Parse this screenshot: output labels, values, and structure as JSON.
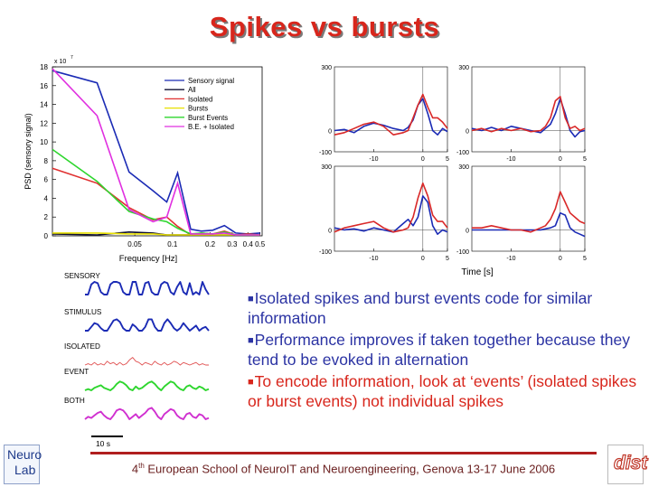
{
  "slide": {
    "title": "Spikes vs bursts",
    "footer_prefix": "4",
    "footer_sup": "th",
    "footer_text": " European School of NeuroIT and Neuroengineering, Genova 13-17 June 2006",
    "logo_left_line1": "Neuro",
    "logo_left_line2": "Lab",
    "logo_right": "dist"
  },
  "bullets": [
    {
      "text": "Isolated spikes and burst events code for similar information",
      "color": "#2b33a3"
    },
    {
      "text": "Performance improves if taken together because they tend to be evoked in alternation",
      "color": "#2b33a3"
    },
    {
      "text": "To encode information, look at ‘events’ (isolated spikes or burst events) not individual spikes",
      "color": "#d8261c"
    }
  ],
  "traces": {
    "labels": [
      "SENSORY",
      "STIMULUS",
      "ISOLATED",
      "EVENT",
      "BOTH"
    ],
    "scale_label": "10 s",
    "colors": [
      "#1b2bb5",
      "#1b2bb5",
      "#e05050",
      "#2ed62e",
      "#d030d0"
    ]
  },
  "chart_data": [
    {
      "type": "line",
      "title": "",
      "xlabel": "Frequency [Hz]",
      "ylabel": "PSD (sensory signal)",
      "y_multiplier_label": "x 10",
      "y_multiplier_exp": "7",
      "x_tick_labels": [
        "0.05",
        "0.1",
        "0.2",
        "0.3",
        "0.4",
        "0.5"
      ],
      "x_ticks": [
        0.05,
        0.1,
        0.2,
        0.3,
        0.4,
        0.5
      ],
      "y_ticks": [
        0,
        2,
        4,
        6,
        8,
        10,
        12,
        14,
        16,
        18
      ],
      "xlim": [
        0.011,
        0.52
      ],
      "ylim": [
        0,
        18
      ],
      "x_scale": "log",
      "legend_position": "top-right",
      "x": [
        0.011,
        0.025,
        0.045,
        0.07,
        0.09,
        0.11,
        0.14,
        0.17,
        0.21,
        0.26,
        0.32,
        0.4,
        0.5
      ],
      "series": [
        {
          "name": "Sensory signal",
          "color": "#1b2bb5",
          "values": [
            17.6,
            16.3,
            6.8,
            4.8,
            3.6,
            6.7,
            0.7,
            0.5,
            0.6,
            1.1,
            0.3,
            0.2,
            0.3
          ]
        },
        {
          "name": "All",
          "color": "#111133",
          "values": [
            0.2,
            0.1,
            0.4,
            0.3,
            0.1,
            0.1,
            0.1,
            0.1,
            0.1,
            0.1,
            0.1,
            0.1,
            0.1
          ]
        },
        {
          "name": "Isolated",
          "color": "#e03030",
          "values": [
            7.2,
            5.6,
            3.0,
            1.7,
            2.0,
            1.0,
            0.1,
            0.3,
            0.2,
            0.5,
            0.1,
            0.2,
            0.1
          ]
        },
        {
          "name": "Bursts",
          "color": "#e8e000",
          "values": [
            0.3,
            0.3,
            0.2,
            0.2,
            0.1,
            0.1,
            0.1,
            0.1,
            0.1,
            0.1,
            0.1,
            0.1,
            0.1
          ]
        },
        {
          "name": "Burst Events",
          "color": "#2ed62e",
          "values": [
            9.2,
            5.8,
            2.6,
            1.8,
            1.5,
            0.8,
            0.2,
            0.3,
            0.2,
            0.4,
            0.1,
            0.1,
            0.1
          ]
        },
        {
          "name": "B.E. + Isolated",
          "color": "#e030e0",
          "values": [
            17.8,
            12.8,
            2.8,
            1.5,
            2.0,
            5.6,
            0.2,
            0.2,
            0.2,
            0.3,
            0.1,
            0.1,
            0.1
          ]
        }
      ]
    },
    {
      "type": "line",
      "shared_xlabel": "Time [s]",
      "x_ticks": [
        -10,
        0,
        5
      ],
      "x_tick_labels": [
        "-10",
        "0",
        "5"
      ],
      "y_ticks": [
        -100,
        0,
        300
      ],
      "y_tick_labels": [
        "-100",
        "0",
        "300"
      ],
      "xlim": [
        -18,
        5
      ],
      "ylim": [
        -100,
        300
      ],
      "panels": [
        {
          "series": [
            {
              "color": "#1b2bb5",
              "x": [
                -18,
                -16,
                -14,
                -12,
                -10,
                -8,
                -6,
                -4,
                -3,
                -2,
                -1,
                0,
                1,
                2,
                3,
                4,
                5
              ],
              "y": [
                0,
                5,
                -10,
                20,
                35,
                25,
                10,
                0,
                15,
                50,
                120,
                150,
                80,
                0,
                -20,
                10,
                -5
              ]
            },
            {
              "color": "#d92828",
              "x": [
                -18,
                -16,
                -14,
                -12,
                -10,
                -8,
                -6,
                -4,
                -3,
                -2,
                -1,
                0,
                1,
                2,
                3,
                4,
                5
              ],
              "y": [
                -20,
                -10,
                10,
                30,
                40,
                20,
                -20,
                -10,
                0,
                60,
                120,
                170,
                110,
                60,
                60,
                40,
                10
              ]
            }
          ]
        },
        {
          "series": [
            {
              "color": "#1b2bb5",
              "x": [
                -18,
                -16,
                -14,
                -12,
                -10,
                -8,
                -6,
                -4,
                -3,
                -2,
                -1,
                0,
                1,
                2,
                3,
                4,
                5
              ],
              "y": [
                10,
                0,
                15,
                0,
                20,
                10,
                0,
                -10,
                10,
                30,
                80,
                150,
                80,
                0,
                -30,
                -5,
                0
              ]
            },
            {
              "color": "#d92828",
              "x": [
                -18,
                -16,
                -14,
                -12,
                -10,
                -8,
                -6,
                -4,
                -3,
                -2,
                -1,
                0,
                1,
                2,
                3,
                4,
                5
              ],
              "y": [
                0,
                10,
                -5,
                10,
                0,
                10,
                -5,
                0,
                20,
                60,
                140,
                160,
                60,
                10,
                20,
                0,
                10
              ]
            }
          ]
        },
        {
          "series": [
            {
              "color": "#1b2bb5",
              "x": [
                -18,
                -16,
                -14,
                -12,
                -10,
                -8,
                -6,
                -4,
                -3,
                -2,
                -1,
                0,
                1,
                2,
                3,
                4,
                5
              ],
              "y": [
                10,
                0,
                5,
                -5,
                10,
                0,
                -10,
                30,
                50,
                20,
                60,
                160,
                130,
                20,
                -20,
                0,
                -10
              ]
            },
            {
              "color": "#d92828",
              "x": [
                -18,
                -16,
                -14,
                -12,
                -10,
                -8,
                -6,
                -4,
                -3,
                -2,
                -1,
                0,
                1,
                2,
                3,
                4,
                5
              ],
              "y": [
                -10,
                10,
                20,
                30,
                40,
                10,
                -10,
                0,
                10,
                60,
                150,
                220,
                160,
                70,
                40,
                40,
                10
              ]
            }
          ]
        },
        {
          "series": [
            {
              "color": "#1b2bb5",
              "x": [
                -18,
                -16,
                -14,
                -12,
                -10,
                -8,
                -6,
                -4,
                -3,
                -2,
                -1,
                0,
                1,
                2,
                3,
                4,
                5
              ],
              "y": [
                0,
                0,
                0,
                0,
                0,
                0,
                0,
                0,
                5,
                10,
                20,
                80,
                70,
                10,
                -10,
                -20,
                -30
              ]
            },
            {
              "color": "#d92828",
              "x": [
                -18,
                -16,
                -14,
                -12,
                -10,
                -8,
                -6,
                -4,
                -3,
                -2,
                -1,
                0,
                1,
                2,
                3,
                4,
                5
              ],
              "y": [
                10,
                10,
                20,
                10,
                0,
                0,
                -10,
                10,
                20,
                50,
                100,
                180,
                130,
                80,
                60,
                40,
                30
              ]
            }
          ]
        }
      ]
    }
  ]
}
